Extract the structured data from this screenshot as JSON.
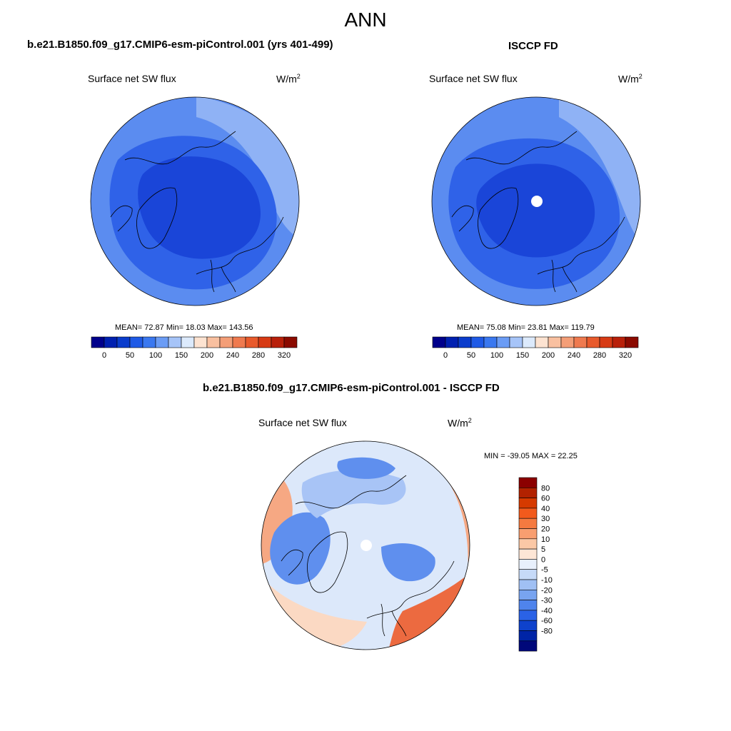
{
  "main_title": "ANN",
  "panel_left": {
    "case": "b.e21.B1850.f09_g17.CMIP6-esm-piControl.001 (yrs 401-499)",
    "variable": "Surface net SW flux",
    "units_base": "W/m",
    "units_exp": "2",
    "stats": "MEAN=  72.87  Min=  18.03  Max= 143.56"
  },
  "panel_right": {
    "case": "ISCCP FD",
    "variable": "Surface net SW flux",
    "units_base": "W/m",
    "units_exp": "2",
    "stats": "MEAN=  75.08  Min=  23.81  Max= 119.79"
  },
  "panel_diff": {
    "case": "b.e21.B1850.f09_g17.CMIP6-esm-piControl.001 - ISCCP FD",
    "variable": "Surface net SW flux",
    "units_base": "W/m",
    "units_exp": "2",
    "stats": "MIN = -39.05 MAX =  22.25"
  },
  "colorbar_abs": {
    "colors": [
      "#00008b",
      "#0020b0",
      "#0a3ccc",
      "#1f5ae6",
      "#3a78f0",
      "#6b9cf5",
      "#a6c4f8",
      "#dceafc",
      "#fde3d1",
      "#f9c0a0",
      "#f49e77",
      "#ef7a4f",
      "#e85a2c",
      "#d73a14",
      "#b8200a",
      "#8b0a00"
    ],
    "labels": [
      "0",
      "50",
      "100",
      "150",
      "200",
      "240",
      "280",
      "320"
    ]
  },
  "colorbar_diff": {
    "colors": [
      "#8b0000",
      "#b22200",
      "#d63a00",
      "#f25a1c",
      "#f57a40",
      "#f89e70",
      "#fbc8a6",
      "#fde6d6",
      "#e8f0fc",
      "#c6daf8",
      "#a0c0f4",
      "#78a4f0",
      "#4f84ec",
      "#2a62e6",
      "#0e42cc",
      "#0024a6",
      "#00087a"
    ],
    "labels": [
      "80",
      "60",
      "40",
      "30",
      "20",
      "10",
      "5",
      "0",
      "-5",
      "-10",
      "-20",
      "-30",
      "-40",
      "-60",
      "-80"
    ]
  },
  "map_colors": {
    "abs_deep": "#1a45d8",
    "abs_mid": "#2f62e8",
    "abs_light": "#5b8cf0",
    "abs_pale": "#8fb2f5",
    "diff_base": "#dce8fa",
    "diff_blue": "#5f8fee",
    "diff_blue_light": "#a8c4f6",
    "diff_orange": "#f6a883",
    "diff_orange_light": "#fbd9c3",
    "diff_red": "#ec6a40",
    "coast": "#000000"
  }
}
